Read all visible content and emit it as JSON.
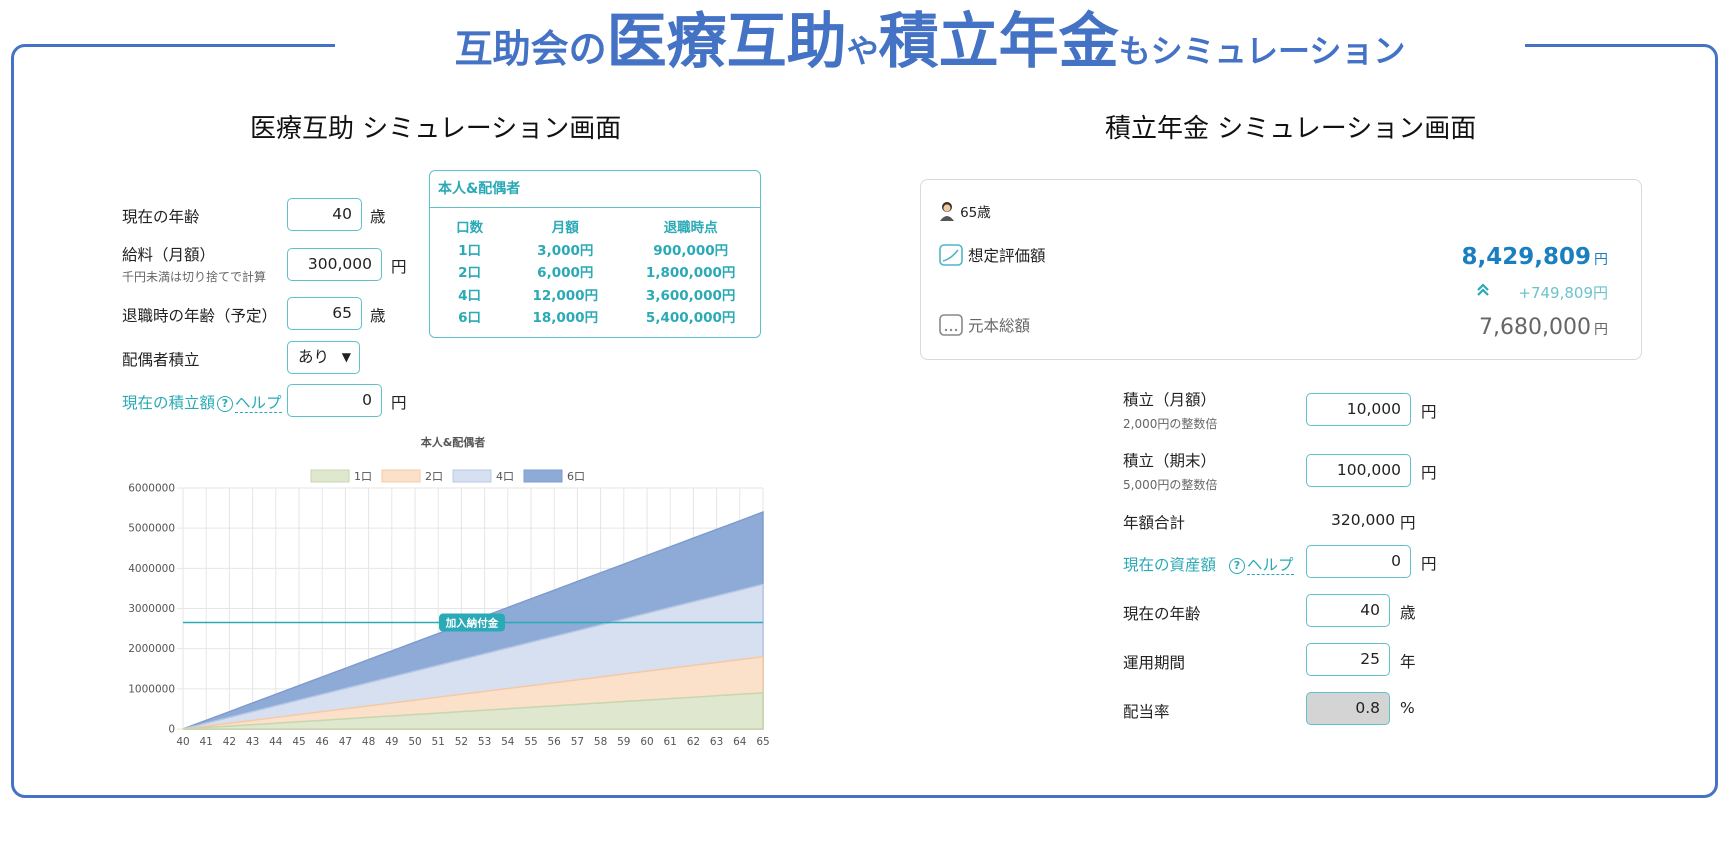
{
  "banner": {
    "part1": "互助会の",
    "part2": "医療互助",
    "part3": "や",
    "part4": "積立年金",
    "part5": "もシミュレーション"
  },
  "medical": {
    "title": "医療互助  シミュレーション画面",
    "age_label": "現在の年齢",
    "age_value": "40",
    "age_unit": "歳",
    "salary_label": "給料（月額）",
    "salary_note": "千円未満は切り捨てで計算",
    "salary_value": "300,000",
    "salary_unit": "円",
    "retire_label": "退職時の年齢（予定）",
    "retire_value": "65",
    "retire_unit": "歳",
    "spouse_label": "配偶者積立",
    "spouse_value": "あり",
    "current_label": "現在の積立額",
    "help_icon": "?",
    "help_label": "ヘルプ",
    "current_value": "0",
    "current_unit": "円",
    "table": {
      "title": "本人&配偶者",
      "headers": [
        "口数",
        "月額",
        "退職時点"
      ],
      "rows": [
        [
          "1口",
          "3,000円",
          "900,000円"
        ],
        [
          "2口",
          "6,000円",
          "1,800,000円"
        ],
        [
          "4口",
          "12,000円",
          "3,600,000円"
        ],
        [
          "6口",
          "18,000円",
          "5,400,000円"
        ]
      ]
    }
  },
  "pension": {
    "title": "積立年金  シミュレーション画面",
    "card": {
      "age": "65歳",
      "eval_label": "想定評価額",
      "eval_value": "8,429,809",
      "yen": "円",
      "gain": "+749,809円",
      "principal_label": "元本総額",
      "principal_value": "7,680,000"
    },
    "monthly_label": "積立（月額）",
    "monthly_note": "2,000円の整数倍",
    "monthly_value": "10,000",
    "unit_yen": "円",
    "term_label": "積立（期末）",
    "term_note": "5,000円の整数倍",
    "term_value": "100,000",
    "annual_label": "年額合計",
    "annual_value": "320,000",
    "asset_label": "現在の資産額",
    "help_icon": "?",
    "help_label": "ヘルプ",
    "asset_value": "0",
    "age_label": "現在の年齢",
    "age_value": "40",
    "age_unit": "歳",
    "period_label": "運用期間",
    "period_value": "25",
    "period_unit": "年",
    "div_label": "配当率",
    "div_value": "0.8",
    "div_unit": "%"
  },
  "colors": {
    "brand": "#4472c4",
    "teal": "#2aa9b6",
    "eval": "#1a7fc1"
  },
  "icons": {
    "avatar": "person-icon",
    "eval": "chart-icon",
    "principal": "dots-icon",
    "gain": "double-chevron-up-icon"
  },
  "chart_data": {
    "type": "area",
    "title": "本人&配偶者",
    "x": [
      40,
      41,
      42,
      43,
      44,
      45,
      46,
      47,
      48,
      49,
      50,
      51,
      52,
      53,
      54,
      55,
      56,
      57,
      58,
      59,
      60,
      61,
      62,
      63,
      64,
      65
    ],
    "series": [
      {
        "name": "1口",
        "color": "#dfe8cf",
        "stroke": "#c7d6ad",
        "values": [
          0,
          36000,
          72000,
          108000,
          144000,
          180000,
          216000,
          252000,
          288000,
          324000,
          360000,
          396000,
          432000,
          468000,
          504000,
          540000,
          576000,
          612000,
          648000,
          684000,
          720000,
          756000,
          792000,
          828000,
          864000,
          900000
        ]
      },
      {
        "name": "2口",
        "color": "#fbe0ca",
        "stroke": "#f5c9a6",
        "values": [
          0,
          72000,
          144000,
          216000,
          288000,
          360000,
          432000,
          504000,
          576000,
          648000,
          720000,
          792000,
          864000,
          936000,
          1008000,
          1080000,
          1152000,
          1224000,
          1296000,
          1368000,
          1440000,
          1512000,
          1584000,
          1656000,
          1728000,
          1800000
        ]
      },
      {
        "name": "4口",
        "color": "#d6e0f0",
        "stroke": "#b8c8e3",
        "values": [
          0,
          144000,
          288000,
          432000,
          576000,
          720000,
          864000,
          1008000,
          1152000,
          1296000,
          1440000,
          1584000,
          1728000,
          1872000,
          2016000,
          2160000,
          2304000,
          2448000,
          2592000,
          2736000,
          2880000,
          3024000,
          3168000,
          3312000,
          3456000,
          3600000
        ]
      },
      {
        "name": "6口",
        "color": "#8eaad6",
        "stroke": "#7f9ccd",
        "values": [
          0,
          216000,
          432000,
          648000,
          864000,
          1080000,
          1296000,
          1512000,
          1728000,
          1944000,
          2160000,
          2376000,
          2592000,
          2808000,
          3024000,
          3240000,
          3456000,
          3672000,
          3888000,
          4104000,
          4320000,
          4536000,
          4752000,
          4968000,
          5184000,
          5400000
        ]
      }
    ],
    "ylim": [
      0,
      6000000
    ],
    "yticks": [
      "0",
      "1000000",
      "2000000",
      "3000000",
      "4000000",
      "5000000",
      "6000000"
    ],
    "line": {
      "label": "加入納付金",
      "value": 2650000,
      "color": "#2aa9b6"
    },
    "legend": "top",
    "grid": true
  }
}
